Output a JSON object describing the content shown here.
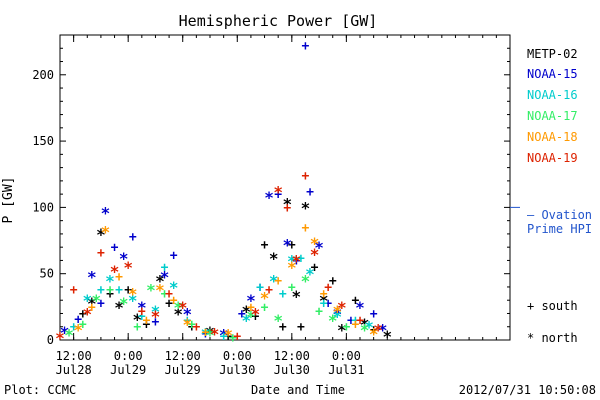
{
  "chart_data": {
    "type": "scatter",
    "title": "Hemispheric Power [GW]",
    "xlabel": "Date and Time",
    "ylabel": "P [GW]",
    "ylim": [
      0,
      230
    ],
    "yticks": [
      0,
      50,
      100,
      150,
      200
    ],
    "xlim": [
      "2012-07-28T09:00",
      "2012-08-01T12:00"
    ],
    "xticks": [
      {
        "t": "2012-07-28T12:00",
        "line1": "12:00",
        "line2": "Jul28"
      },
      {
        "t": "2012-07-29T00:00",
        "line1": "0:00",
        "line2": "Jul29"
      },
      {
        "t": "2012-07-29T12:00",
        "line1": "12:00",
        "line2": "Jul29"
      },
      {
        "t": "2012-07-30T00:00",
        "line1": "0:00",
        "line2": "Jul30"
      },
      {
        "t": "2012-07-30T12:00",
        "line1": "12:00",
        "line2": "Jul30"
      },
      {
        "t": "2012-07-31T00:00",
        "line1": "0:00",
        "line2": "Jul31"
      }
    ],
    "grid": false,
    "legend_position": "right",
    "series": [
      {
        "name": "METP-02",
        "color": "#000000",
        "points": [
          [
            "2012-07-28T14:00",
            20,
            "+"
          ],
          [
            "2012-07-28T16:00",
            28,
            "*"
          ],
          [
            "2012-07-28T18:00",
            80,
            "*"
          ],
          [
            "2012-07-28T20:00",
            35,
            "+"
          ],
          [
            "2012-07-28T22:00",
            25,
            "*"
          ],
          [
            "2012-07-29T00:00",
            38,
            "+"
          ],
          [
            "2012-07-29T02:00",
            16,
            "*"
          ],
          [
            "2012-07-29T04:00",
            12,
            "+"
          ],
          [
            "2012-07-29T07:00",
            45,
            "*"
          ],
          [
            "2012-07-29T09:00",
            28,
            "+"
          ],
          [
            "2012-07-29T11:00",
            20,
            "*"
          ],
          [
            "2012-07-29T14:00",
            10,
            "+"
          ],
          [
            "2012-07-29T18:00",
            6,
            "*"
          ],
          [
            "2012-07-29T22:00",
            3,
            "+"
          ],
          [
            "2012-07-30T02:00",
            22,
            "*"
          ],
          [
            "2012-07-30T04:00",
            18,
            "+"
          ],
          [
            "2012-07-30T06:00",
            72,
            "+"
          ],
          [
            "2012-07-30T08:00",
            62,
            "*"
          ],
          [
            "2012-07-30T10:00",
            10,
            "+"
          ],
          [
            "2012-07-30T11:00",
            103,
            "*"
          ],
          [
            "2012-07-30T12:00",
            72,
            "+"
          ],
          [
            "2012-07-30T13:00",
            33,
            "*"
          ],
          [
            "2012-07-30T14:00",
            10,
            "+"
          ],
          [
            "2012-07-30T15:00",
            100,
            "*"
          ],
          [
            "2012-07-30T17:00",
            55,
            "+"
          ],
          [
            "2012-07-30T19:00",
            30,
            "*"
          ],
          [
            "2012-07-30T21:00",
            45,
            "+"
          ],
          [
            "2012-07-30T23:00",
            8,
            "*"
          ],
          [
            "2012-07-31T02:00",
            30,
            "+"
          ],
          [
            "2012-07-31T04:00",
            12,
            "*"
          ],
          [
            "2012-07-31T06:00",
            8,
            "+"
          ],
          [
            "2012-07-31T09:00",
            3,
            "*"
          ]
        ]
      },
      {
        "name": "NOAA-15",
        "color": "#0000cc",
        "points": [
          [
            "2012-07-28T10:00",
            6,
            "*"
          ],
          [
            "2012-07-28T13:00",
            16,
            "+"
          ],
          [
            "2012-07-28T16:00",
            48,
            "*"
          ],
          [
            "2012-07-28T18:00",
            28,
            "+"
          ],
          [
            "2012-07-28T19:00",
            96,
            "*"
          ],
          [
            "2012-07-28T21:00",
            70,
            "+"
          ],
          [
            "2012-07-28T23:00",
            62,
            "*"
          ],
          [
            "2012-07-29T01:00",
            78,
            "+"
          ],
          [
            "2012-07-29T03:00",
            25,
            "*"
          ],
          [
            "2012-07-29T06:00",
            14,
            "+"
          ],
          [
            "2012-07-29T08:00",
            48,
            "*"
          ],
          [
            "2012-07-29T10:00",
            64,
            "+"
          ],
          [
            "2012-07-29T13:00",
            20,
            "*"
          ],
          [
            "2012-07-29T17:00",
            5,
            "+"
          ],
          [
            "2012-07-29T21:00",
            4,
            "*"
          ],
          [
            "2012-07-30T01:00",
            20,
            "+"
          ],
          [
            "2012-07-30T03:00",
            30,
            "*"
          ],
          [
            "2012-07-30T05:00",
            40,
            "+"
          ],
          [
            "2012-07-30T07:00",
            108,
            "*"
          ],
          [
            "2012-07-30T09:00",
            110,
            "+"
          ],
          [
            "2012-07-30T11:00",
            72,
            "*"
          ],
          [
            "2012-07-30T13:00",
            60,
            "+"
          ],
          [
            "2012-07-30T15:00",
            222,
            "+"
          ],
          [
            "2012-07-30T16:00",
            112,
            "+"
          ],
          [
            "2012-07-30T18:00",
            70,
            "*"
          ],
          [
            "2012-07-30T20:00",
            28,
            "+"
          ],
          [
            "2012-07-30T22:00",
            20,
            "*"
          ],
          [
            "2012-07-31T01:00",
            15,
            "+"
          ],
          [
            "2012-07-31T03:00",
            25,
            "*"
          ],
          [
            "2012-07-31T06:00",
            20,
            "+"
          ],
          [
            "2012-07-31T08:00",
            8,
            "*"
          ]
        ]
      },
      {
        "name": "NOAA-16",
        "color": "#00cccc",
        "points": [
          [
            "2012-07-28T12:00",
            10,
            "+"
          ],
          [
            "2012-07-28T15:00",
            30,
            "*"
          ],
          [
            "2012-07-28T18:00",
            38,
            "+"
          ],
          [
            "2012-07-28T20:00",
            45,
            "*"
          ],
          [
            "2012-07-28T22:00",
            38,
            "+"
          ],
          [
            "2012-07-29T01:00",
            30,
            "*"
          ],
          [
            "2012-07-29T03:00",
            18,
            "+"
          ],
          [
            "2012-07-29T06:00",
            22,
            "*"
          ],
          [
            "2012-07-29T08:00",
            55,
            "+"
          ],
          [
            "2012-07-29T10:00",
            40,
            "*"
          ],
          [
            "2012-07-29T13:00",
            15,
            "+"
          ],
          [
            "2012-07-29T17:00",
            5,
            "*"
          ],
          [
            "2012-07-29T21:00",
            3,
            "+"
          ],
          [
            "2012-07-30T02:00",
            15,
            "*"
          ],
          [
            "2012-07-30T05:00",
            40,
            "+"
          ],
          [
            "2012-07-30T08:00",
            45,
            "*"
          ],
          [
            "2012-07-30T10:00",
            35,
            "+"
          ],
          [
            "2012-07-30T12:00",
            60,
            "*"
          ],
          [
            "2012-07-30T14:00",
            62,
            "+"
          ],
          [
            "2012-07-30T16:00",
            50,
            "*"
          ],
          [
            "2012-07-30T19:00",
            28,
            "+"
          ],
          [
            "2012-07-30T22:00",
            18,
            "*"
          ],
          [
            "2012-07-31T02:00",
            15,
            "+"
          ],
          [
            "2012-07-31T05:00",
            10,
            "*"
          ]
        ]
      },
      {
        "name": "NOAA-17",
        "color": "#33ee66",
        "points": [
          [
            "2012-07-28T11:00",
            4,
            "*"
          ],
          [
            "2012-07-28T14:00",
            12,
            "+"
          ],
          [
            "2012-07-28T17:00",
            30,
            "*"
          ],
          [
            "2012-07-28T20:00",
            38,
            "+"
          ],
          [
            "2012-07-28T23:00",
            28,
            "*"
          ],
          [
            "2012-07-29T02:00",
            10,
            "+"
          ],
          [
            "2012-07-29T05:00",
            38,
            "*"
          ],
          [
            "2012-07-29T08:00",
            35,
            "+"
          ],
          [
            "2012-07-29T11:00",
            25,
            "*"
          ],
          [
            "2012-07-29T14:00",
            12,
            "+"
          ],
          [
            "2012-07-29T18:00",
            4,
            "*"
          ],
          [
            "2012-07-29T23:00",
            2,
            "+"
          ],
          [
            "2012-07-30T03:00",
            18,
            "*"
          ],
          [
            "2012-07-30T06:00",
            25,
            "+"
          ],
          [
            "2012-07-30T09:00",
            15,
            "*"
          ],
          [
            "2012-07-30T12:00",
            40,
            "+"
          ],
          [
            "2012-07-30T15:00",
            45,
            "*"
          ],
          [
            "2012-07-30T18:00",
            22,
            "+"
          ],
          [
            "2012-07-30T21:00",
            15,
            "*"
          ],
          [
            "2012-07-31T00:00",
            10,
            "+"
          ],
          [
            "2012-07-31T04:00",
            8,
            "*"
          ]
        ]
      },
      {
        "name": "NOAA-18",
        "color": "#ff9900",
        "points": [
          [
            "2012-07-28T13:00",
            8,
            "*"
          ],
          [
            "2012-07-28T16:00",
            25,
            "+"
          ],
          [
            "2012-07-28T19:00",
            82,
            "*"
          ],
          [
            "2012-07-28T22:00",
            48,
            "+"
          ],
          [
            "2012-07-29T01:00",
            35,
            "*"
          ],
          [
            "2012-07-29T04:00",
            15,
            "+"
          ],
          [
            "2012-07-29T07:00",
            38,
            "*"
          ],
          [
            "2012-07-29T10:00",
            30,
            "+"
          ],
          [
            "2012-07-29T13:00",
            12,
            "*"
          ],
          [
            "2012-07-29T17:00",
            6,
            "+"
          ],
          [
            "2012-07-29T22:00",
            4,
            "*"
          ],
          [
            "2012-07-30T03:00",
            25,
            "+"
          ],
          [
            "2012-07-30T06:00",
            32,
            "*"
          ],
          [
            "2012-07-30T09:00",
            45,
            "+"
          ],
          [
            "2012-07-30T12:00",
            55,
            "*"
          ],
          [
            "2012-07-30T15:00",
            85,
            "+"
          ],
          [
            "2012-07-30T17:00",
            73,
            "*"
          ],
          [
            "2012-07-30T19:00",
            35,
            "+"
          ],
          [
            "2012-07-30T22:00",
            22,
            "*"
          ],
          [
            "2012-07-31T02:00",
            12,
            "+"
          ],
          [
            "2012-07-31T06:00",
            5,
            "*"
          ]
        ]
      },
      {
        "name": "NOAA-19",
        "color": "#dd2200",
        "points": [
          [
            "2012-07-28T09:00",
            2,
            "*"
          ],
          [
            "2012-07-28T12:00",
            38,
            "+"
          ],
          [
            "2012-07-28T15:00",
            20,
            "*"
          ],
          [
            "2012-07-28T18:00",
            66,
            "+"
          ],
          [
            "2012-07-28T21:00",
            52,
            "*"
          ],
          [
            "2012-07-29T00:00",
            55,
            "*"
          ],
          [
            "2012-07-29T03:00",
            22,
            "+"
          ],
          [
            "2012-07-29T06:00",
            18,
            "*"
          ],
          [
            "2012-07-29T09:00",
            35,
            "+"
          ],
          [
            "2012-07-29T12:00",
            25,
            "*"
          ],
          [
            "2012-07-29T15:00",
            10,
            "+"
          ],
          [
            "2012-07-29T19:00",
            5,
            "*"
          ],
          [
            "2012-07-30T00:00",
            3,
            "+"
          ],
          [
            "2012-07-30T04:00",
            20,
            "*"
          ],
          [
            "2012-07-30T07:00",
            38,
            "+"
          ],
          [
            "2012-07-30T09:00",
            112,
            "*"
          ],
          [
            "2012-07-30T11:00",
            100,
            "+"
          ],
          [
            "2012-07-30T13:00",
            60,
            "*"
          ],
          [
            "2012-07-30T15:00",
            124,
            "+"
          ],
          [
            "2012-07-30T17:00",
            65,
            "*"
          ],
          [
            "2012-07-30T20:00",
            40,
            "+"
          ],
          [
            "2012-07-30T23:00",
            25,
            "*"
          ],
          [
            "2012-07-31T03:00",
            15,
            "+"
          ],
          [
            "2012-07-31T07:00",
            8,
            "*"
          ]
        ]
      }
    ],
    "ovation_value": 100,
    "ovation_color": "#2255cc"
  },
  "legend": {
    "items": [
      {
        "label": "METP-02",
        "color": "#000000"
      },
      {
        "label": "NOAA-15",
        "color": "#0000cc"
      },
      {
        "label": "NOAA-16",
        "color": "#00cccc"
      },
      {
        "label": "NOAA-17",
        "color": "#33ee66"
      },
      {
        "label": "NOAA-18",
        "color": "#ff9900"
      },
      {
        "label": "NOAA-19",
        "color": "#dd2200"
      }
    ],
    "ovation_line1": "— Ovation",
    "ovation_line2": "Prime HPI",
    "south_label": "+ south",
    "north_label": "* north"
  },
  "footer": {
    "plot_credit": "Plot: CCMC",
    "xlabel": "Date and Time",
    "timestamp": "2012/07/31  10:50:08"
  }
}
